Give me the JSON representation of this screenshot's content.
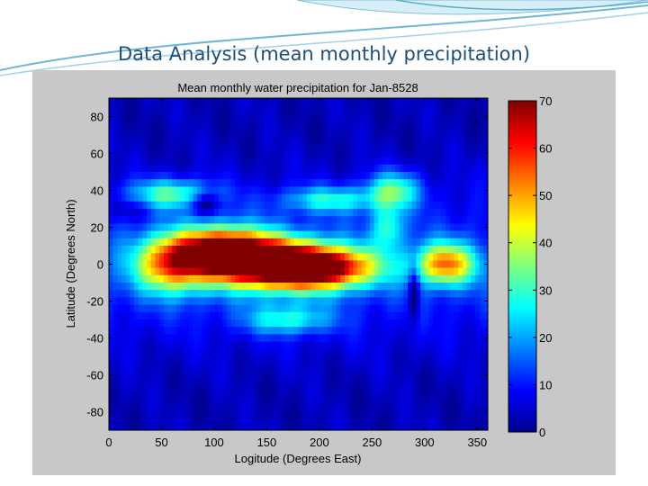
{
  "slide": {
    "title": "Data Analysis (mean monthly precipitation)"
  },
  "colors": {
    "title": "#1f4e79",
    "swoosh": "#6cb8d8",
    "figure_bg": "#c8c8c8"
  },
  "chart_data": {
    "type": "heatmap",
    "title": "Mean monthly water precipitation for Jan-8528",
    "xlabel": "Logitude (Degrees East)",
    "ylabel": "Latitude (Degrees North)",
    "xlim": [
      0,
      360
    ],
    "ylim": [
      -90,
      90
    ],
    "xticks": [
      0,
      50,
      100,
      150,
      200,
      250,
      300,
      350
    ],
    "yticks": [
      80,
      60,
      40,
      20,
      0,
      -20,
      -40,
      -60,
      -80
    ],
    "colorbar": {
      "range": [
        0,
        70
      ],
      "ticks": [
        70,
        60,
        50,
        40,
        30,
        20,
        10,
        0
      ],
      "colormap": "jet"
    },
    "features": [
      {
        "lon": 150,
        "lat": 0,
        "value": 55,
        "slon": 60,
        "slat": 13
      },
      {
        "lon": 200,
        "lat": -2,
        "value": 55,
        "slon": 55,
        "slat": 11
      },
      {
        "lon": 110,
        "lat": 8,
        "value": 52,
        "slon": 45,
        "slat": 12
      },
      {
        "lon": 60,
        "lat": 0,
        "value": 42,
        "slon": 35,
        "slat": 15
      },
      {
        "lon": 320,
        "lat": 0,
        "value": 42,
        "slon": 28,
        "slat": 11
      },
      {
        "lon": 60,
        "lat": 38,
        "value": 25,
        "slon": 40,
        "slat": 8
      },
      {
        "lon": 210,
        "lat": 35,
        "value": 20,
        "slon": 45,
        "slat": 7
      },
      {
        "lon": 170,
        "lat": -30,
        "value": 20,
        "slon": 40,
        "slat": 8
      },
      {
        "lon": 270,
        "lat": 40,
        "value": 25,
        "slon": 25,
        "slat": 10
      },
      {
        "lon": 265,
        "lat": 20,
        "value": 20,
        "slon": 15,
        "slat": 12
      }
    ],
    "dry_zones": [
      {
        "lon": 90,
        "lat": 33,
        "value": -14,
        "slon": 15,
        "slat": 6
      },
      {
        "lon": 290,
        "lat": -15,
        "value": -16,
        "slon": 5,
        "slat": 15
      },
      {
        "lon": 20,
        "lat": 30,
        "value": -6,
        "slon": 20,
        "slat": 6
      }
    ]
  }
}
